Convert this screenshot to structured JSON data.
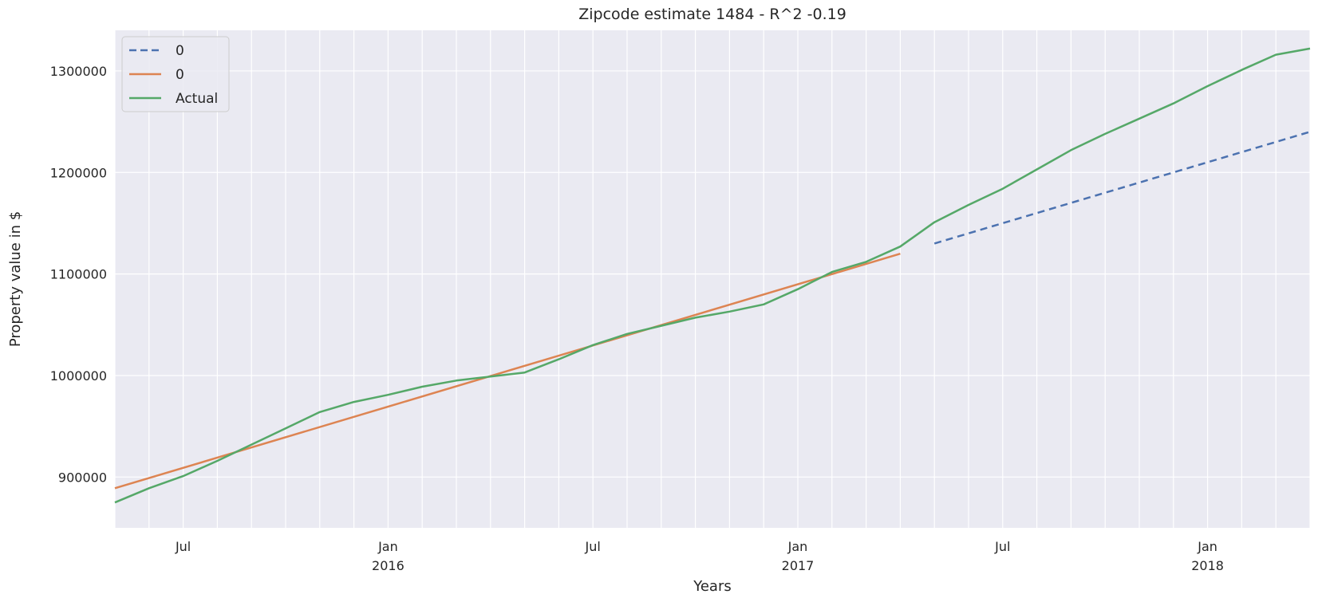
{
  "chart_data": {
    "type": "line",
    "title": "Zipcode estimate 1484 - R^2 -0.19",
    "xlabel": "Years",
    "ylabel": "Property value in $",
    "xlim": [
      "2015-05",
      "2018-04"
    ],
    "ylim": [
      850000,
      1340000
    ],
    "y_ticks": [
      900000,
      1000000,
      1100000,
      1200000,
      1300000
    ],
    "x_ticks": [
      {
        "month": "2015-07",
        "label": "Jul",
        "sublabel": ""
      },
      {
        "month": "2016-01",
        "label": "Jan",
        "sublabel": "2016"
      },
      {
        "month": "2016-07",
        "label": "Jul",
        "sublabel": ""
      },
      {
        "month": "2017-01",
        "label": "Jan",
        "sublabel": "2017"
      },
      {
        "month": "2017-07",
        "label": "Jul",
        "sublabel": ""
      },
      {
        "month": "2018-01",
        "label": "Jan",
        "sublabel": "2018"
      }
    ],
    "grid": true,
    "legend_position": "top-left",
    "series": [
      {
        "name": "0",
        "color": "#4c72b0",
        "style": "dashed",
        "points": [
          [
            "2017-05",
            1130000
          ],
          [
            "2018-04",
            1240000
          ]
        ]
      },
      {
        "name": "0",
        "color": "#dd8452",
        "style": "solid",
        "points": [
          [
            "2015-05",
            889000
          ],
          [
            "2017-04",
            1120000
          ]
        ]
      },
      {
        "name": "Actual",
        "color": "#55a868",
        "style": "solid",
        "points": [
          [
            "2015-05",
            875000
          ],
          [
            "2015-06",
            889000
          ],
          [
            "2015-07",
            901000
          ],
          [
            "2015-08",
            916000
          ],
          [
            "2015-09",
            932000
          ],
          [
            "2015-10",
            948000
          ],
          [
            "2015-11",
            964000
          ],
          [
            "2015-12",
            974000
          ],
          [
            "2016-01",
            981000
          ],
          [
            "2016-02",
            989000
          ],
          [
            "2016-03",
            995000
          ],
          [
            "2016-04",
            999000
          ],
          [
            "2016-05",
            1003000
          ],
          [
            "2016-06",
            1016000
          ],
          [
            "2016-07",
            1030000
          ],
          [
            "2016-08",
            1041000
          ],
          [
            "2016-09",
            1049000
          ],
          [
            "2016-10",
            1057000
          ],
          [
            "2016-11",
            1063000
          ],
          [
            "2016-12",
            1070000
          ],
          [
            "2017-01",
            1085000
          ],
          [
            "2017-02",
            1102000
          ],
          [
            "2017-03",
            1112000
          ],
          [
            "2017-04",
            1127000
          ],
          [
            "2017-05",
            1151000
          ],
          [
            "2017-06",
            1168000
          ],
          [
            "2017-07",
            1184000
          ],
          [
            "2017-08",
            1203000
          ],
          [
            "2017-09",
            1222000
          ],
          [
            "2017-10",
            1238000
          ],
          [
            "2017-11",
            1253000
          ],
          [
            "2017-12",
            1268000
          ],
          [
            "2018-01",
            1285000
          ],
          [
            "2018-02",
            1301000
          ],
          [
            "2018-03",
            1316000
          ],
          [
            "2018-04",
            1322000
          ]
        ]
      }
    ]
  }
}
